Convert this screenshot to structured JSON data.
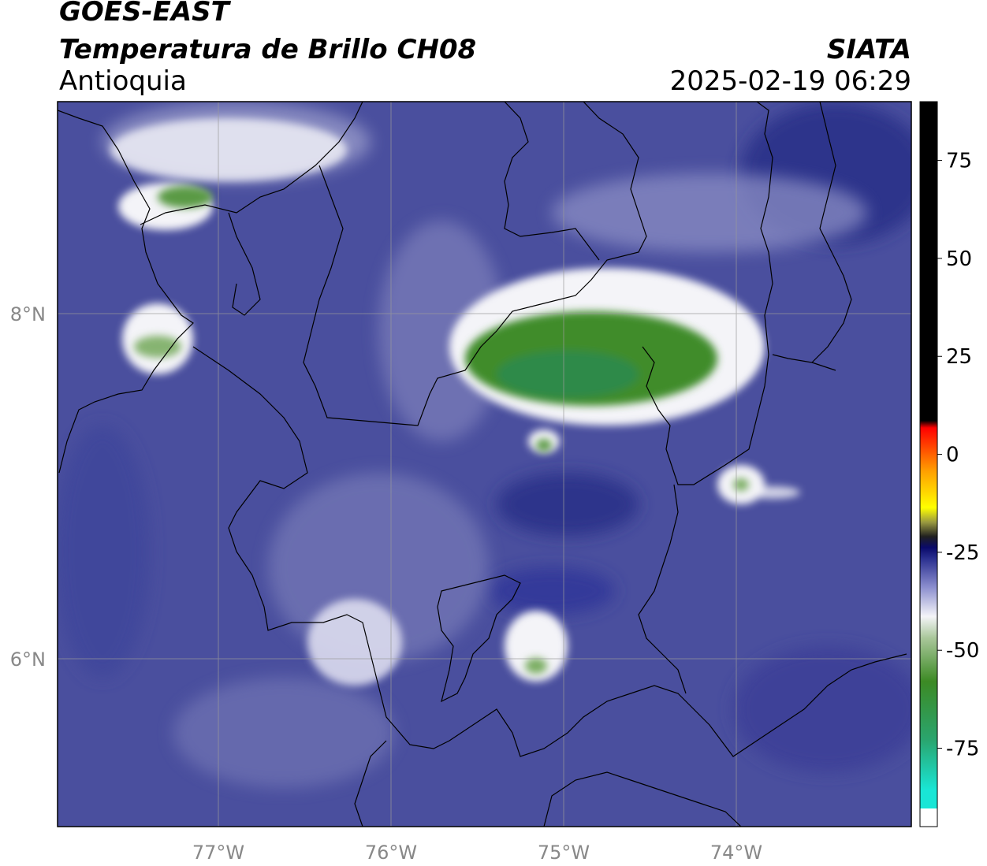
{
  "header": {
    "satellite": "GOES-EAST",
    "product": "Temperatura de Brillo CH08",
    "region": "Antioquia",
    "agency": "SIATA",
    "datetime": "2025-02-19 06:29"
  },
  "map": {
    "lon_range": [
      -77.93,
      -72.98
    ],
    "lat_range": [
      4.7,
      8.9
    ],
    "lon_ticks": [
      "77°W",
      "76°W",
      "75°W",
      "74°W"
    ],
    "lat_ticks": [
      "8°N",
      "6°N"
    ],
    "gridlines": true
  },
  "colorbar": {
    "labels": [
      "75",
      "50",
      "25",
      "0",
      "-25",
      "-50",
      "-75"
    ],
    "range": [
      -95,
      90
    ]
  },
  "colors": {
    "background_blue": "#4a4f9e",
    "dark_blue": "#2b3189",
    "cloud_white": "#f4f4f8",
    "cloud_green": "#3f8c2a",
    "border_line": "#000000",
    "grid_line": "#9a9a9a"
  }
}
